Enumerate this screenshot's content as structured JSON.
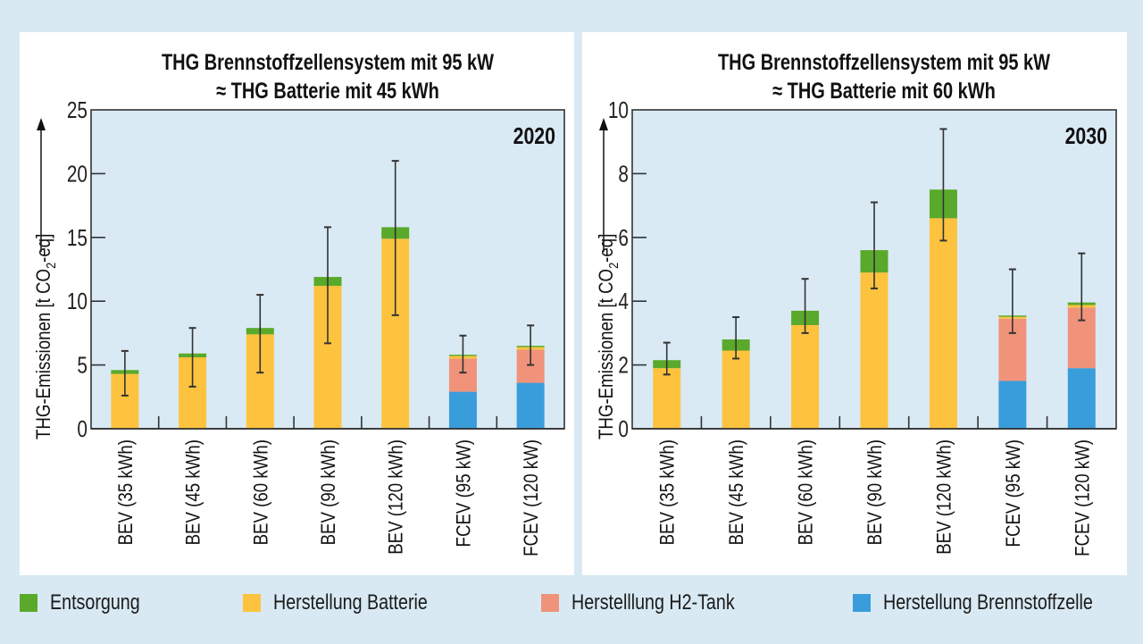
{
  "colors": {
    "background": "#d8e9f3",
    "plot_bg": "#d9eaf4",
    "Entsorgung": "#5aa92a",
    "Herstellung Batterie": "#fdc33e",
    "Herstelllung H2-Tank": "#f0937a",
    "Herstellung Brennstoffzelle": "#3a9ddb"
  },
  "legend": [
    {
      "key": "Entsorgung",
      "label": "Entsorgung",
      "color": "#5aa92a"
    },
    {
      "key": "Herstellung Batterie",
      "label": "Herstellung Batterie",
      "color": "#fdc33e"
    },
    {
      "key": "Herstelllung H2-Tank",
      "label": "Herstelllung H2-Tank",
      "color": "#f0937a"
    },
    {
      "key": "Herstellung Brennstoffzelle",
      "label": "Herstellung Brennstoffzelle",
      "color": "#3a9ddb"
    }
  ],
  "chart_data": [
    {
      "type": "bar",
      "stacked": true,
      "title_line1": "THG Brennstoffzellensystem mit 95 kW",
      "title_line2": "≈ THG Batterie mit 45 kWh",
      "year_label": "2020",
      "ylabel": "THG-Emissionen [t CO2-eq]",
      "ylabel_main": "THG-Emissionen [t CO",
      "ylabel_sub": "2",
      "ylabel_tail": "-eq]",
      "ylim": [
        0,
        25
      ],
      "yticks": [
        0,
        5,
        10,
        15,
        20,
        25
      ],
      "grid": false,
      "categories": [
        "BEV (35 kWh)",
        "BEV (45 kWh)",
        "BEV (60 kWh)",
        "BEV (90 kWh)",
        "BEV (120 kWh)",
        "FCEV (95 kW)",
        "FCEV (120 kW)"
      ],
      "series": [
        {
          "name": "Herstellung Brennstoffzelle",
          "values": [
            0,
            0,
            0,
            0,
            0,
            2.9,
            3.6
          ]
        },
        {
          "name": "Herstelllung H2-Tank",
          "values": [
            0,
            0,
            0,
            0,
            0,
            2.6,
            2.6
          ]
        },
        {
          "name": "Herstellung Batterie",
          "values": [
            4.3,
            5.6,
            7.4,
            11.2,
            14.9,
            0.2,
            0.2
          ]
        },
        {
          "name": "Entsorgung",
          "values": [
            0.3,
            0.3,
            0.5,
            0.7,
            0.9,
            0.1,
            0.1
          ]
        }
      ],
      "totals": [
        4.6,
        5.9,
        7.9,
        11.9,
        15.8,
        5.8,
        6.5
      ],
      "error_bars": [
        {
          "low": 2.6,
          "high": 6.1
        },
        {
          "low": 3.3,
          "high": 7.9
        },
        {
          "low": 4.4,
          "high": 10.5
        },
        {
          "low": 6.7,
          "high": 15.8
        },
        {
          "low": 8.9,
          "high": 21.0
        },
        {
          "low": 4.4,
          "high": 7.3
        },
        {
          "low": 5.0,
          "high": 8.1
        }
      ]
    },
    {
      "type": "bar",
      "stacked": true,
      "title_line1": "THG Brennstoffzellensystem mit 95 kW",
      "title_line2": "≈ THG Batterie mit 60 kWh",
      "year_label": "2030",
      "ylabel": "THG-Emissionen [t CO2-eq]",
      "ylabel_main": "THG-Emissionen [t CO",
      "ylabel_sub": "2",
      "ylabel_tail": "-eq]",
      "ylim": [
        0,
        10
      ],
      "yticks": [
        0,
        2,
        4,
        6,
        8,
        10
      ],
      "grid": false,
      "categories": [
        "BEV (35 kWh)",
        "BEV (45 kWh)",
        "BEV (60 kWh)",
        "BEV (90 kWh)",
        "BEV (120 kWh)",
        "FCEV (95 kW)",
        "FCEV (120 kW)"
      ],
      "series": [
        {
          "name": "Herstellung Brennstoffzelle",
          "values": [
            0,
            0,
            0,
            0,
            0,
            1.5,
            1.9
          ]
        },
        {
          "name": "Herstelllung H2-Tank",
          "values": [
            0,
            0,
            0,
            0,
            0,
            1.95,
            1.9
          ]
        },
        {
          "name": "Herstellung Batterie",
          "values": [
            1.9,
            2.45,
            3.25,
            4.9,
            6.6,
            0.06,
            0.08
          ]
        },
        {
          "name": "Entsorgung",
          "values": [
            0.25,
            0.35,
            0.45,
            0.7,
            0.9,
            0.04,
            0.08
          ]
        }
      ],
      "totals": [
        2.15,
        2.8,
        3.7,
        5.6,
        7.5,
        3.55,
        3.96
      ],
      "error_bars": [
        {
          "low": 1.7,
          "high": 2.7
        },
        {
          "low": 2.2,
          "high": 3.5
        },
        {
          "low": 3.0,
          "high": 4.7
        },
        {
          "low": 4.4,
          "high": 7.1
        },
        {
          "low": 5.9,
          "high": 9.4
        },
        {
          "low": 3.0,
          "high": 5.0
        },
        {
          "low": 3.4,
          "high": 5.5
        }
      ]
    }
  ]
}
